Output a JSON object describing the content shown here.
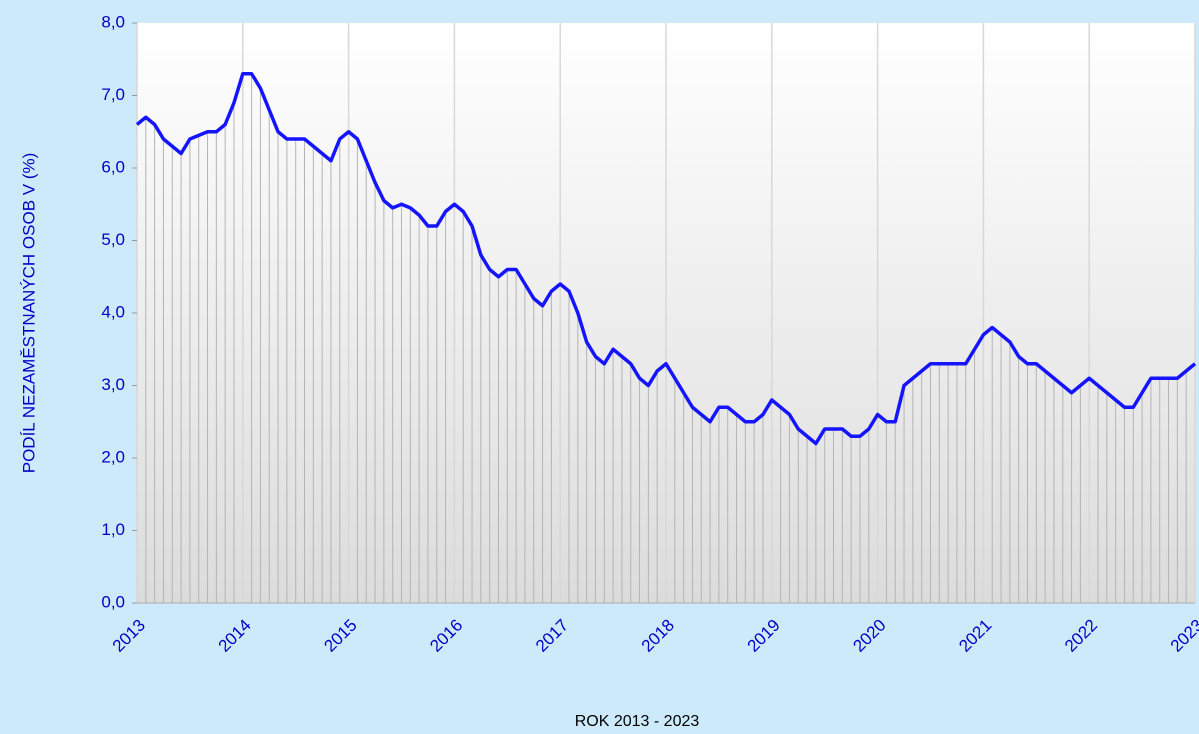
{
  "chart_data": {
    "type": "line",
    "xlabel": "ROK 2013 - 2023",
    "ylabel": "PODÍL NEZAMĚSTNANÝCH OSOB V (%)",
    "categories": [
      "2013",
      null,
      null,
      null,
      null,
      null,
      null,
      null,
      null,
      null,
      null,
      null,
      "2014",
      null,
      null,
      null,
      null,
      null,
      null,
      null,
      null,
      null,
      null,
      null,
      "2015",
      null,
      null,
      null,
      null,
      null,
      null,
      null,
      null,
      null,
      null,
      null,
      "2016",
      null,
      null,
      null,
      null,
      null,
      null,
      null,
      null,
      null,
      null,
      null,
      "2017",
      null,
      null,
      null,
      null,
      null,
      null,
      null,
      null,
      null,
      null,
      null,
      "2018",
      null,
      null,
      null,
      null,
      null,
      null,
      null,
      null,
      null,
      null,
      null,
      "2019",
      null,
      null,
      null,
      null,
      null,
      null,
      null,
      null,
      null,
      null,
      null,
      "2020",
      null,
      null,
      null,
      null,
      null,
      null,
      null,
      null,
      null,
      null,
      null,
      "2021",
      null,
      null,
      null,
      null,
      null,
      null,
      null,
      null,
      null,
      null,
      null,
      "2022",
      null,
      null,
      null,
      null,
      null,
      null,
      null,
      null,
      null,
      null,
      null,
      "2023"
    ],
    "values": [
      6.6,
      6.7,
      6.6,
      6.4,
      6.3,
      6.2,
      6.4,
      6.45,
      6.5,
      6.5,
      6.6,
      6.9,
      7.3,
      7.3,
      7.1,
      6.8,
      6.5,
      6.4,
      6.4,
      6.4,
      6.3,
      6.2,
      6.1,
      6.4,
      6.5,
      6.4,
      6.1,
      5.8,
      5.55,
      5.45,
      5.5,
      5.45,
      5.35,
      5.2,
      5.2,
      5.4,
      5.5,
      5.4,
      5.2,
      4.8,
      4.6,
      4.5,
      4.6,
      4.6,
      4.4,
      4.2,
      4.1,
      4.3,
      4.4,
      4.3,
      4.0,
      3.6,
      3.4,
      3.3,
      3.5,
      3.4,
      3.3,
      3.1,
      3.0,
      3.2,
      3.3,
      3.1,
      2.9,
      2.7,
      2.6,
      2.5,
      2.7,
      2.7,
      2.6,
      2.5,
      2.5,
      2.6,
      2.8,
      2.7,
      2.6,
      2.4,
      2.3,
      2.2,
      2.4,
      2.4,
      2.4,
      2.3,
      2.3,
      2.4,
      2.6,
      2.5,
      2.5,
      3.0,
      3.1,
      3.2,
      3.3,
      3.3,
      3.3,
      3.3,
      3.3,
      3.5,
      3.7,
      3.8,
      3.7,
      3.6,
      3.4,
      3.3,
      3.3,
      3.2,
      3.1,
      3.0,
      2.9,
      3.0,
      3.1,
      3.0,
      2.9,
      2.8,
      2.7,
      2.7,
      2.9,
      3.1,
      3.1,
      3.1,
      3.1,
      3.2,
      3.3
    ],
    "color": "#1414ff",
    "ylim": [
      0,
      8
    ],
    "yticks": [
      {
        "value": 0,
        "label": "0,0"
      },
      {
        "value": 1,
        "label": "1,0"
      },
      {
        "value": 2,
        "label": "2,0"
      },
      {
        "value": 3,
        "label": "3,0"
      },
      {
        "value": 4,
        "label": "4,0"
      },
      {
        "value": 5,
        "label": "5,0"
      },
      {
        "value": 6,
        "label": "6,0"
      },
      {
        "value": 7,
        "label": "7,0"
      },
      {
        "value": 8,
        "label": "8,0"
      }
    ],
    "grid": true
  }
}
